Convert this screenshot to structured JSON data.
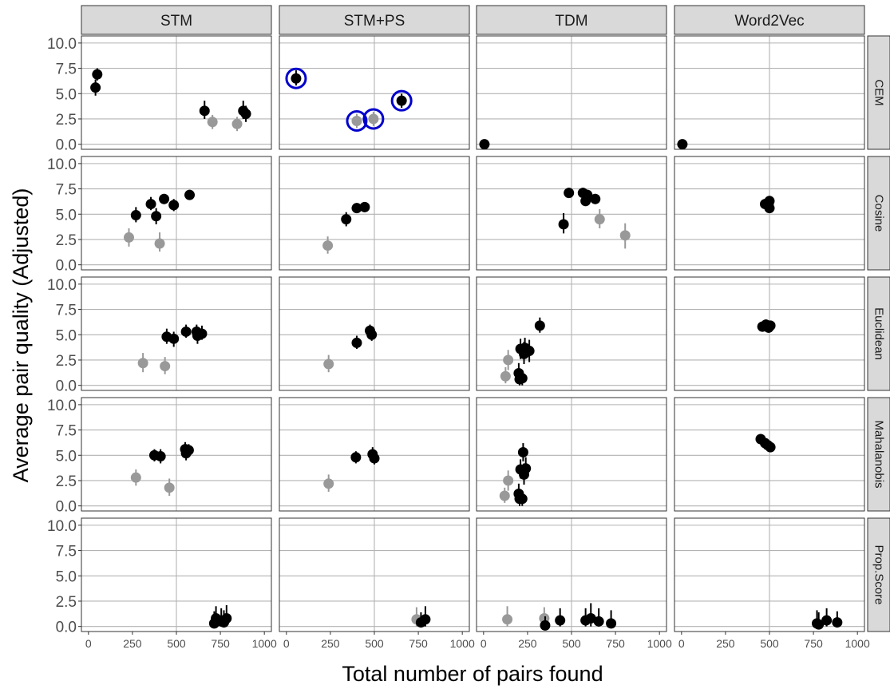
{
  "chart_data": {
    "type": "scatter",
    "xlabel": "Total number of pairs found",
    "ylabel": "Average pair quality (Adjusted)",
    "xlim": [
      -40,
      1040
    ],
    "ylim": [
      -0.5,
      10.7
    ],
    "x_ticks": [
      0,
      250,
      500,
      750,
      1000
    ],
    "x_tick_labels": [
      "0",
      "250",
      "500",
      "750",
      "1000"
    ],
    "y_ticks": [
      0.0,
      2.5,
      5.0,
      7.5,
      10.0
    ],
    "y_tick_labels": [
      "0.0",
      "2.5",
      "5.0",
      "7.5",
      "10.0"
    ],
    "grid": true,
    "facet_columns": [
      "STM",
      "STM+PS",
      "TDM",
      "Word2Vec"
    ],
    "facet_rows": [
      "CEM",
      "Cosine",
      "Euclidean",
      "Mahalanobis",
      "Prop.Score"
    ],
    "colors": {
      "black_points": "#000000",
      "grey_points": "#999999",
      "highlight_ring": "#0000cc",
      "strip_bg": "#d9d9d9",
      "grid": "#b3b3b3"
    },
    "points": [
      {
        "col": "STM",
        "row": "CEM",
        "x": 40,
        "y": 5.6,
        "lo": 4.8,
        "hi": 6.4,
        "color": "black"
      },
      {
        "col": "STM",
        "row": "CEM",
        "x": 50,
        "y": 6.9,
        "lo": 6.3,
        "hi": 7.5,
        "color": "black"
      },
      {
        "col": "STM",
        "row": "CEM",
        "x": 660,
        "y": 3.3,
        "lo": 2.5,
        "hi": 4.3,
        "color": "black"
      },
      {
        "col": "STM",
        "row": "CEM",
        "x": 705,
        "y": 2.2,
        "lo": 1.5,
        "hi": 2.9,
        "color": "grey"
      },
      {
        "col": "STM",
        "row": "CEM",
        "x": 845,
        "y": 2.0,
        "lo": 1.3,
        "hi": 2.7,
        "color": "grey"
      },
      {
        "col": "STM",
        "row": "CEM",
        "x": 880,
        "y": 3.3,
        "lo": 2.5,
        "hi": 4.3,
        "color": "black"
      },
      {
        "col": "STM",
        "row": "CEM",
        "x": 895,
        "y": 3.0,
        "lo": 2.2,
        "hi": 3.8,
        "color": "black"
      },
      {
        "col": "STM+PS",
        "row": "CEM",
        "x": 55,
        "y": 6.5,
        "lo": 5.8,
        "hi": 7.3,
        "color": "black",
        "highlight": true
      },
      {
        "col": "STM+PS",
        "row": "CEM",
        "x": 400,
        "y": 2.3,
        "lo": 1.6,
        "hi": 3.0,
        "color": "grey",
        "highlight": true
      },
      {
        "col": "STM+PS",
        "row": "CEM",
        "x": 495,
        "y": 2.5,
        "lo": 1.8,
        "hi": 3.2,
        "color": "grey",
        "highlight": true
      },
      {
        "col": "STM+PS",
        "row": "CEM",
        "x": 655,
        "y": 4.3,
        "lo": 3.6,
        "hi": 5.0,
        "color": "black",
        "highlight": true
      },
      {
        "col": "TDM",
        "row": "CEM",
        "x": 5,
        "y": 0.0,
        "lo": 0.0,
        "hi": 0.0,
        "color": "black"
      },
      {
        "col": "Word2Vec",
        "row": "CEM",
        "x": 5,
        "y": 0.0,
        "lo": 0.0,
        "hi": 0.0,
        "color": "black"
      },
      {
        "col": "STM",
        "row": "Cosine",
        "x": 230,
        "y": 2.7,
        "lo": 1.8,
        "hi": 3.6,
        "color": "grey"
      },
      {
        "col": "STM",
        "row": "Cosine",
        "x": 270,
        "y": 4.9,
        "lo": 4.2,
        "hi": 5.7,
        "color": "black"
      },
      {
        "col": "STM",
        "row": "Cosine",
        "x": 355,
        "y": 6.0,
        "lo": 5.4,
        "hi": 6.7,
        "color": "black"
      },
      {
        "col": "STM",
        "row": "Cosine",
        "x": 385,
        "y": 4.8,
        "lo": 4.0,
        "hi": 5.6,
        "color": "black"
      },
      {
        "col": "STM",
        "row": "Cosine",
        "x": 405,
        "y": 2.1,
        "lo": 1.3,
        "hi": 3.2,
        "color": "grey"
      },
      {
        "col": "STM",
        "row": "Cosine",
        "x": 430,
        "y": 6.5,
        "lo": 6.0,
        "hi": 7.0,
        "color": "black"
      },
      {
        "col": "STM",
        "row": "Cosine",
        "x": 485,
        "y": 5.9,
        "lo": 5.3,
        "hi": 6.5,
        "color": "black"
      },
      {
        "col": "STM",
        "row": "Cosine",
        "x": 575,
        "y": 6.9,
        "lo": 6.4,
        "hi": 7.4,
        "color": "black"
      },
      {
        "col": "STM+PS",
        "row": "Cosine",
        "x": 235,
        "y": 1.9,
        "lo": 1.1,
        "hi": 2.8,
        "color": "grey"
      },
      {
        "col": "STM+PS",
        "row": "Cosine",
        "x": 340,
        "y": 4.5,
        "lo": 3.8,
        "hi": 5.2,
        "color": "black"
      },
      {
        "col": "STM+PS",
        "row": "Cosine",
        "x": 400,
        "y": 5.6,
        "lo": 5.1,
        "hi": 6.1,
        "color": "black"
      },
      {
        "col": "STM+PS",
        "row": "Cosine",
        "x": 445,
        "y": 5.7,
        "lo": 5.2,
        "hi": 6.2,
        "color": "black"
      },
      {
        "col": "TDM",
        "row": "Cosine",
        "x": 455,
        "y": 4.0,
        "lo": 3.1,
        "hi": 5.1,
        "color": "black"
      },
      {
        "col": "TDM",
        "row": "Cosine",
        "x": 485,
        "y": 7.1,
        "lo": 6.6,
        "hi": 7.6,
        "color": "black"
      },
      {
        "col": "TDM",
        "row": "Cosine",
        "x": 565,
        "y": 7.1,
        "lo": 6.6,
        "hi": 7.6,
        "color": "black"
      },
      {
        "col": "TDM",
        "row": "Cosine",
        "x": 580,
        "y": 6.3,
        "lo": 5.8,
        "hi": 6.8,
        "color": "black"
      },
      {
        "col": "TDM",
        "row": "Cosine",
        "x": 590,
        "y": 6.9,
        "lo": 6.4,
        "hi": 7.4,
        "color": "black"
      },
      {
        "col": "TDM",
        "row": "Cosine",
        "x": 635,
        "y": 6.5,
        "lo": 6.0,
        "hi": 7.0,
        "color": "black"
      },
      {
        "col": "TDM",
        "row": "Cosine",
        "x": 660,
        "y": 4.5,
        "lo": 3.6,
        "hi": 5.5,
        "color": "grey"
      },
      {
        "col": "TDM",
        "row": "Cosine",
        "x": 805,
        "y": 2.9,
        "lo": 1.6,
        "hi": 4.1,
        "color": "grey"
      },
      {
        "col": "Word2Vec",
        "row": "Cosine",
        "x": 475,
        "y": 6.0,
        "lo": 5.5,
        "hi": 6.5,
        "color": "black"
      },
      {
        "col": "Word2Vec",
        "row": "Cosine",
        "x": 495,
        "y": 5.9,
        "lo": 5.4,
        "hi": 6.4,
        "color": "black"
      },
      {
        "col": "Word2Vec",
        "row": "Cosine",
        "x": 500,
        "y": 6.3,
        "lo": 5.8,
        "hi": 6.8,
        "color": "black"
      },
      {
        "col": "Word2Vec",
        "row": "Cosine",
        "x": 500,
        "y": 5.6,
        "lo": 5.1,
        "hi": 6.1,
        "color": "black"
      },
      {
        "col": "STM",
        "row": "Euclidean",
        "x": 310,
        "y": 2.2,
        "lo": 1.3,
        "hi": 3.2,
        "color": "grey"
      },
      {
        "col": "STM",
        "row": "Euclidean",
        "x": 435,
        "y": 1.9,
        "lo": 1.1,
        "hi": 2.8,
        "color": "grey"
      },
      {
        "col": "STM",
        "row": "Euclidean",
        "x": 445,
        "y": 4.8,
        "lo": 4.1,
        "hi": 5.6,
        "color": "black"
      },
      {
        "col": "STM",
        "row": "Euclidean",
        "x": 485,
        "y": 4.6,
        "lo": 3.8,
        "hi": 5.3,
        "color": "black"
      },
      {
        "col": "STM",
        "row": "Euclidean",
        "x": 555,
        "y": 5.3,
        "lo": 4.7,
        "hi": 6.0,
        "color": "black"
      },
      {
        "col": "STM",
        "row": "Euclidean",
        "x": 615,
        "y": 5.3,
        "lo": 4.6,
        "hi": 6.0,
        "color": "black"
      },
      {
        "col": "STM",
        "row": "Euclidean",
        "x": 620,
        "y": 4.9,
        "lo": 4.1,
        "hi": 5.8,
        "color": "black"
      },
      {
        "col": "STM",
        "row": "Euclidean",
        "x": 645,
        "y": 5.1,
        "lo": 4.5,
        "hi": 5.9,
        "color": "black"
      },
      {
        "col": "STM+PS",
        "row": "Euclidean",
        "x": 240,
        "y": 2.1,
        "lo": 1.3,
        "hi": 3.0,
        "color": "grey"
      },
      {
        "col": "STM+PS",
        "row": "Euclidean",
        "x": 400,
        "y": 4.2,
        "lo": 3.6,
        "hi": 4.9,
        "color": "black"
      },
      {
        "col": "STM+PS",
        "row": "Euclidean",
        "x": 475,
        "y": 5.4,
        "lo": 4.8,
        "hi": 6.0,
        "color": "black"
      },
      {
        "col": "STM+PS",
        "row": "Euclidean",
        "x": 485,
        "y": 5.0,
        "lo": 4.4,
        "hi": 5.6,
        "color": "black"
      },
      {
        "col": "TDM",
        "row": "Euclidean",
        "x": 125,
        "y": 0.9,
        "lo": 0.2,
        "hi": 1.8,
        "color": "grey"
      },
      {
        "col": "TDM",
        "row": "Euclidean",
        "x": 140,
        "y": 2.5,
        "lo": 1.5,
        "hi": 3.5,
        "color": "grey"
      },
      {
        "col": "TDM",
        "row": "Euclidean",
        "x": 200,
        "y": 1.2,
        "lo": 0.5,
        "hi": 2.2,
        "color": "black"
      },
      {
        "col": "TDM",
        "row": "Euclidean",
        "x": 205,
        "y": 0.6,
        "lo": 0.0,
        "hi": 1.3,
        "color": "black"
      },
      {
        "col": "TDM",
        "row": "Euclidean",
        "x": 210,
        "y": 3.6,
        "lo": 2.6,
        "hi": 4.6,
        "color": "black"
      },
      {
        "col": "TDM",
        "row": "Euclidean",
        "x": 220,
        "y": 0.7,
        "lo": 0.0,
        "hi": 1.5,
        "color": "black"
      },
      {
        "col": "TDM",
        "row": "Euclidean",
        "x": 230,
        "y": 3.1,
        "lo": 2.1,
        "hi": 4.3,
        "color": "black"
      },
      {
        "col": "TDM",
        "row": "Euclidean",
        "x": 235,
        "y": 3.7,
        "lo": 2.7,
        "hi": 4.7,
        "color": "black"
      },
      {
        "col": "TDM",
        "row": "Euclidean",
        "x": 260,
        "y": 3.4,
        "lo": 2.3,
        "hi": 4.5,
        "color": "black"
      },
      {
        "col": "TDM",
        "row": "Euclidean",
        "x": 320,
        "y": 5.9,
        "lo": 5.2,
        "hi": 6.7,
        "color": "black"
      },
      {
        "col": "Word2Vec",
        "row": "Euclidean",
        "x": 460,
        "y": 5.8,
        "lo": 5.3,
        "hi": 6.3,
        "color": "black"
      },
      {
        "col": "Word2Vec",
        "row": "Euclidean",
        "x": 480,
        "y": 6.0,
        "lo": 5.5,
        "hi": 6.5,
        "color": "black"
      },
      {
        "col": "Word2Vec",
        "row": "Euclidean",
        "x": 495,
        "y": 5.7,
        "lo": 5.2,
        "hi": 6.2,
        "color": "black"
      },
      {
        "col": "Word2Vec",
        "row": "Euclidean",
        "x": 505,
        "y": 5.9,
        "lo": 5.4,
        "hi": 6.4,
        "color": "black"
      },
      {
        "col": "STM",
        "row": "Mahalanobis",
        "x": 270,
        "y": 2.8,
        "lo": 2.0,
        "hi": 3.6,
        "color": "grey"
      },
      {
        "col": "STM",
        "row": "Mahalanobis",
        "x": 375,
        "y": 5.0,
        "lo": 4.4,
        "hi": 5.6,
        "color": "black"
      },
      {
        "col": "STM",
        "row": "Mahalanobis",
        "x": 410,
        "y": 4.9,
        "lo": 4.2,
        "hi": 5.6,
        "color": "black"
      },
      {
        "col": "STM",
        "row": "Mahalanobis",
        "x": 460,
        "y": 1.8,
        "lo": 1.0,
        "hi": 2.7,
        "color": "grey"
      },
      {
        "col": "STM",
        "row": "Mahalanobis",
        "x": 550,
        "y": 5.6,
        "lo": 4.9,
        "hi": 6.3,
        "color": "black"
      },
      {
        "col": "STM",
        "row": "Mahalanobis",
        "x": 555,
        "y": 5.2,
        "lo": 4.5,
        "hi": 5.9,
        "color": "black"
      },
      {
        "col": "STM",
        "row": "Mahalanobis",
        "x": 570,
        "y": 5.5,
        "lo": 4.9,
        "hi": 6.1,
        "color": "black"
      },
      {
        "col": "STM+PS",
        "row": "Mahalanobis",
        "x": 240,
        "y": 2.2,
        "lo": 1.4,
        "hi": 3.1,
        "color": "grey"
      },
      {
        "col": "STM+PS",
        "row": "Mahalanobis",
        "x": 395,
        "y": 4.8,
        "lo": 4.2,
        "hi": 5.4,
        "color": "black"
      },
      {
        "col": "STM+PS",
        "row": "Mahalanobis",
        "x": 490,
        "y": 5.1,
        "lo": 4.4,
        "hi": 5.8,
        "color": "black"
      },
      {
        "col": "STM+PS",
        "row": "Mahalanobis",
        "x": 500,
        "y": 4.7,
        "lo": 4.1,
        "hi": 5.3,
        "color": "black"
      },
      {
        "col": "TDM",
        "row": "Mahalanobis",
        "x": 120,
        "y": 1.0,
        "lo": 0.3,
        "hi": 1.8,
        "color": "grey"
      },
      {
        "col": "TDM",
        "row": "Mahalanobis",
        "x": 140,
        "y": 2.5,
        "lo": 1.5,
        "hi": 3.5,
        "color": "grey"
      },
      {
        "col": "TDM",
        "row": "Mahalanobis",
        "x": 200,
        "y": 1.2,
        "lo": 0.5,
        "hi": 2.2,
        "color": "black"
      },
      {
        "col": "TDM",
        "row": "Mahalanobis",
        "x": 205,
        "y": 0.7,
        "lo": 0.0,
        "hi": 1.4,
        "color": "black"
      },
      {
        "col": "TDM",
        "row": "Mahalanobis",
        "x": 210,
        "y": 3.6,
        "lo": 2.7,
        "hi": 4.6,
        "color": "black"
      },
      {
        "col": "TDM",
        "row": "Mahalanobis",
        "x": 220,
        "y": 0.7,
        "lo": 0.0,
        "hi": 1.5,
        "color": "black"
      },
      {
        "col": "TDM",
        "row": "Mahalanobis",
        "x": 225,
        "y": 5.3,
        "lo": 4.4,
        "hi": 6.2,
        "color": "black"
      },
      {
        "col": "TDM",
        "row": "Mahalanobis",
        "x": 230,
        "y": 3.1,
        "lo": 2.1,
        "hi": 4.2,
        "color": "black"
      },
      {
        "col": "TDM",
        "row": "Mahalanobis",
        "x": 240,
        "y": 3.7,
        "lo": 2.7,
        "hi": 4.8,
        "color": "black"
      },
      {
        "col": "Word2Vec",
        "row": "Mahalanobis",
        "x": 450,
        "y": 6.6,
        "lo": 6.1,
        "hi": 7.1,
        "color": "black"
      },
      {
        "col": "Word2Vec",
        "row": "Mahalanobis",
        "x": 475,
        "y": 6.2,
        "lo": 5.7,
        "hi": 6.7,
        "color": "black"
      },
      {
        "col": "Word2Vec",
        "row": "Mahalanobis",
        "x": 490,
        "y": 6.0,
        "lo": 5.5,
        "hi": 6.5,
        "color": "black"
      },
      {
        "col": "Word2Vec",
        "row": "Mahalanobis",
        "x": 505,
        "y": 5.8,
        "lo": 5.3,
        "hi": 6.3,
        "color": "black"
      },
      {
        "col": "STM",
        "row": "Prop.Score",
        "x": 715,
        "y": 0.3,
        "lo": 0.0,
        "hi": 1.5,
        "color": "black"
      },
      {
        "col": "STM",
        "row": "Prop.Score",
        "x": 725,
        "y": 0.8,
        "lo": 0.0,
        "hi": 2.0,
        "color": "black"
      },
      {
        "col": "STM",
        "row": "Prop.Score",
        "x": 755,
        "y": 0.5,
        "lo": 0.0,
        "hi": 1.8,
        "color": "black"
      },
      {
        "col": "STM",
        "row": "Prop.Score",
        "x": 770,
        "y": 0.4,
        "lo": 0.0,
        "hi": 1.6,
        "color": "black"
      },
      {
        "col": "STM",
        "row": "Prop.Score",
        "x": 785,
        "y": 0.8,
        "lo": 0.0,
        "hi": 2.1,
        "color": "black"
      },
      {
        "col": "STM+PS",
        "row": "Prop.Score",
        "x": 740,
        "y": 0.7,
        "lo": 0.0,
        "hi": 1.9,
        "color": "grey"
      },
      {
        "col": "STM+PS",
        "row": "Prop.Score",
        "x": 765,
        "y": 0.4,
        "lo": 0.0,
        "hi": 1.4,
        "color": "black"
      },
      {
        "col": "STM+PS",
        "row": "Prop.Score",
        "x": 790,
        "y": 0.7,
        "lo": 0.0,
        "hi": 2.0,
        "color": "black"
      },
      {
        "col": "TDM",
        "row": "Prop.Score",
        "x": 135,
        "y": 0.7,
        "lo": 0.0,
        "hi": 2.0,
        "color": "grey"
      },
      {
        "col": "TDM",
        "row": "Prop.Score",
        "x": 345,
        "y": 0.8,
        "lo": 0.0,
        "hi": 1.9,
        "color": "grey"
      },
      {
        "col": "TDM",
        "row": "Prop.Score",
        "x": 350,
        "y": 0.1,
        "lo": 0.0,
        "hi": 1.0,
        "color": "black"
      },
      {
        "col": "TDM",
        "row": "Prop.Score",
        "x": 435,
        "y": 0.6,
        "lo": 0.0,
        "hi": 1.8,
        "color": "black"
      },
      {
        "col": "TDM",
        "row": "Prop.Score",
        "x": 580,
        "y": 0.6,
        "lo": 0.0,
        "hi": 1.8,
        "color": "black"
      },
      {
        "col": "TDM",
        "row": "Prop.Score",
        "x": 610,
        "y": 0.8,
        "lo": 0.0,
        "hi": 2.3,
        "color": "black"
      },
      {
        "col": "TDM",
        "row": "Prop.Score",
        "x": 655,
        "y": 0.5,
        "lo": 0.0,
        "hi": 1.8,
        "color": "black"
      },
      {
        "col": "TDM",
        "row": "Prop.Score",
        "x": 725,
        "y": 0.3,
        "lo": 0.0,
        "hi": 1.6,
        "color": "black"
      },
      {
        "col": "Word2Vec",
        "row": "Prop.Score",
        "x": 770,
        "y": 0.3,
        "lo": 0.0,
        "hi": 1.6,
        "color": "black"
      },
      {
        "col": "Word2Vec",
        "row": "Prop.Score",
        "x": 780,
        "y": 0.2,
        "lo": 0.0,
        "hi": 1.4,
        "color": "black"
      },
      {
        "col": "Word2Vec",
        "row": "Prop.Score",
        "x": 825,
        "y": 0.6,
        "lo": 0.0,
        "hi": 1.8,
        "color": "black"
      },
      {
        "col": "Word2Vec",
        "row": "Prop.Score",
        "x": 885,
        "y": 0.4,
        "lo": 0.0,
        "hi": 1.5,
        "color": "black"
      }
    ]
  }
}
